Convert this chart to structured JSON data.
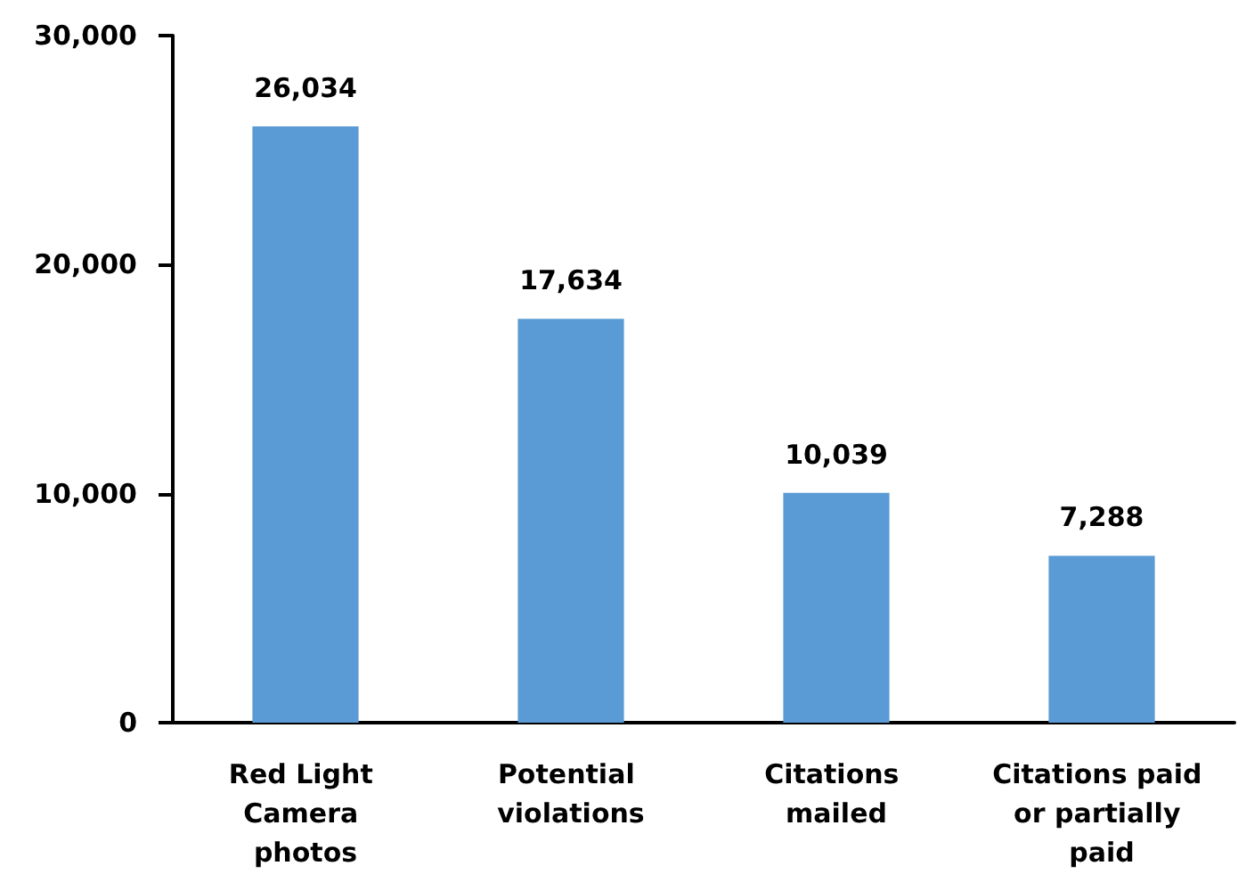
{
  "chart_data": {
    "type": "bar",
    "categories": [
      "Red Light Camera photos",
      "Potential violations",
      "Citations mailed",
      "Citations paid or partially paid"
    ],
    "values": [
      26034,
      17634,
      10039,
      7288
    ],
    "value_labels": [
      "26,034",
      "17,634",
      "10,039",
      "7,288"
    ],
    "color": "#5b9bd5",
    "ylim": [
      0,
      30000
    ],
    "yticks": [
      0,
      {
        "value": 10000,
        "label": "10,000"
      },
      {
        "value": 20000,
        "label": "20,000"
      },
      {
        "value": 30000,
        "label": "30,000"
      }
    ],
    "grid": false
  }
}
